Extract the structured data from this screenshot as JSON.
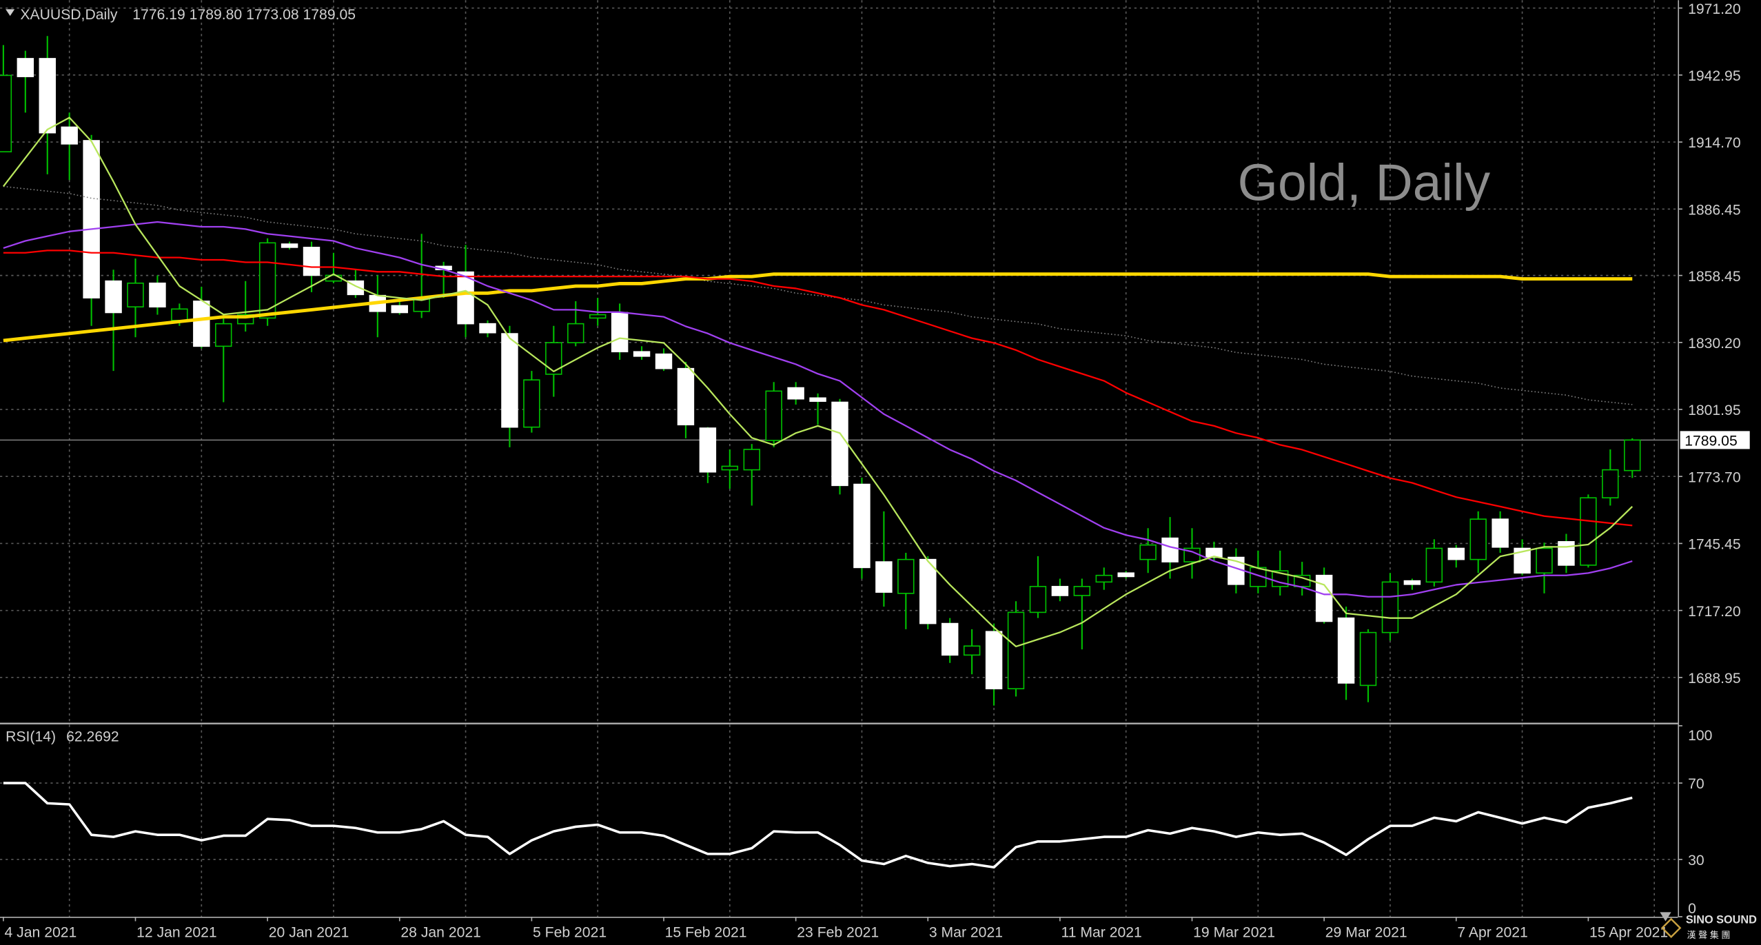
{
  "chart_data": {
    "type": "candlestick",
    "title": "XAUUSD,Daily",
    "subtitle": "1776.19 1789.80 1773.08 1789.05",
    "watermark": "Gold, Daily",
    "categories": [
      "4 Jan 2021",
      null,
      null,
      null,
      null,
      null,
      "12 Jan 2021",
      null,
      null,
      null,
      null,
      null,
      "20 Jan 2021",
      null,
      null,
      null,
      null,
      null,
      "28 Jan 2021",
      null,
      null,
      null,
      null,
      null,
      "5 Feb 2021",
      null,
      null,
      null,
      null,
      null,
      "15 Feb 2021",
      null,
      null,
      null,
      null,
      null,
      "23 Feb 2021",
      null,
      null,
      null,
      null,
      null,
      "3 Mar 2021",
      null,
      null,
      null,
      null,
      null,
      "11 Mar 2021",
      null,
      null,
      null,
      null,
      null,
      "19 Mar 2021",
      null,
      null,
      null,
      null,
      null,
      "29 Mar 2021",
      null,
      null,
      null,
      null,
      null,
      "7 Apr 2021",
      null,
      null,
      null,
      null,
      null,
      "15 Apr 2021",
      null,
      null
    ],
    "open": [
      1910.6,
      1949.9,
      1949.9,
      1921.0,
      1915.3,
      1856.1,
      1845.2,
      1855.2,
      1839.5,
      1847.6,
      1828.6,
      1838.1,
      1840.5,
      1871.7,
      1870.3,
      1856.1,
      1856.1,
      1850.0,
      1845.7,
      1843.3,
      1862.3,
      1859.9,
      1838.1,
      1833.9,
      1794.5,
      1816.8,
      1830.1,
      1840.5,
      1842.8,
      1826.3,
      1825.3,
      1819.2,
      1794.1,
      1776.5,
      1776.5,
      1788.9,
      1811.1,
      1806.8,
      1805.0,
      1770.4,
      1737.7,
      1724.4,
      1738.7,
      1711.7,
      1698.4,
      1708.3,
      1684.2,
      1716.4,
      1727.3,
      1723.5,
      1729.2,
      1733.0,
      1738.7,
      1747.7,
      1737.7,
      1743.4,
      1739.6,
      1727.3,
      1727.3,
      1727.3,
      1732.0,
      1714.0,
      1685.6,
      1707.9,
      1729.7,
      1729.2,
      1743.4,
      1738.7,
      1755.7,
      1743.4,
      1733.0,
      1746.2,
      1736.3,
      1764.7,
      1776.19
    ],
    "high": [
      1955.6,
      1953.2,
      1959.4,
      1927.1,
      1917.7,
      1860.9,
      1865.6,
      1858.5,
      1846.6,
      1853.7,
      1841.9,
      1856.1,
      1874.1,
      1872.7,
      1872.7,
      1868.0,
      1860.9,
      1858.5,
      1847.6,
      1876.0,
      1864.2,
      1871.3,
      1839.5,
      1837.2,
      1818.2,
      1837.2,
      1847.6,
      1849.0,
      1846.6,
      1828.6,
      1827.7,
      1822.0,
      1794.5,
      1785.1,
      1787.4,
      1813.5,
      1813.5,
      1808.7,
      1806.4,
      1773.2,
      1759.0,
      1741.5,
      1740.1,
      1714.0,
      1709.3,
      1711.7,
      1721.1,
      1740.1,
      1730.6,
      1730.6,
      1735.3,
      1733.9,
      1751.9,
      1756.6,
      1751.9,
      1746.2,
      1743.4,
      1742.4,
      1742.4,
      1737.7,
      1735.3,
      1718.8,
      1709.3,
      1733.0,
      1730.6,
      1747.2,
      1744.8,
      1759.0,
      1759.0,
      1747.2,
      1745.8,
      1749.5,
      1766.1,
      1785.1,
      1789.8
    ],
    "low": [
      1910.6,
      1927.1,
      1901.1,
      1898.7,
      1837.2,
      1818.2,
      1832.4,
      1841.9,
      1837.2,
      1827.7,
      1805.0,
      1834.8,
      1837.2,
      1869.4,
      1851.4,
      1855.2,
      1849.0,
      1832.4,
      1841.9,
      1840.5,
      1849.0,
      1832.4,
      1832.4,
      1786.0,
      1792.2,
      1807.3,
      1828.6,
      1837.2,
      1822.9,
      1822.9,
      1818.2,
      1789.8,
      1770.9,
      1768.5,
      1761.4,
      1786.0,
      1804.0,
      1795.5,
      1766.1,
      1730.6,
      1718.8,
      1709.3,
      1709.3,
      1695.1,
      1690.3,
      1677.1,
      1680.9,
      1714.0,
      1721.1,
      1700.8,
      1725.9,
      1730.6,
      1733.0,
      1730.6,
      1730.6,
      1737.7,
      1724.4,
      1724.4,
      1723.5,
      1723.5,
      1711.7,
      1679.5,
      1678.5,
      1704.5,
      1725.9,
      1727.3,
      1735.3,
      1733.0,
      1741.5,
      1732.0,
      1724.4,
      1733.0,
      1735.3,
      1761.4,
      1773.08
    ],
    "close": [
      1942.8,
      1942.3,
      1918.6,
      1913.9,
      1849.0,
      1842.8,
      1855.2,
      1845.2,
      1844.3,
      1828.6,
      1838.1,
      1841.9,
      1872.2,
      1870.3,
      1858.5,
      1858.5,
      1850.4,
      1843.3,
      1842.8,
      1849.0,
      1860.9,
      1838.1,
      1834.3,
      1794.5,
      1814.4,
      1830.1,
      1838.1,
      1841.9,
      1826.3,
      1824.4,
      1819.2,
      1795.5,
      1775.6,
      1778.0,
      1785.1,
      1809.7,
      1806.4,
      1805.4,
      1769.9,
      1735.3,
      1724.9,
      1738.7,
      1711.7,
      1698.4,
      1702.2,
      1684.2,
      1716.4,
      1727.3,
      1723.5,
      1727.3,
      1732.0,
      1731.5,
      1744.8,
      1737.7,
      1743.4,
      1739.6,
      1728.2,
      1735.3,
      1733.9,
      1732.0,
      1712.6,
      1686.6,
      1707.9,
      1729.2,
      1728.2,
      1743.4,
      1738.7,
      1755.7,
      1743.9,
      1733.0,
      1743.4,
      1736.3,
      1764.7,
      1776.5,
      1789.05
    ],
    "up_color": "#000000",
    "down_color": "#ffffff",
    "wick_color": "#00c000",
    "ylim": [
      1670.0,
      1974.5
    ],
    "yticks": [
      {
        "value": 1971.2,
        "label": "1971.20"
      },
      1942.95,
      {
        "value": 1914.7,
        "label": "1914.70"
      },
      1886.45,
      1858.45,
      {
        "value": 1830.2,
        "label": "1830.20"
      },
      1801.95,
      {
        "value": 1773.7,
        "label": "1773.70"
      },
      1745.45,
      {
        "value": 1717.2,
        "label": "1717.20"
      },
      1688.95
    ],
    "grid": true,
    "current_price": 1789.05,
    "overlays": [
      {
        "color": "#808080",
        "style": "dotted",
        "values": [
          1896,
          1895,
          1894,
          1893,
          1891,
          1890,
          1889,
          1888,
          1886,
          1885,
          1884,
          1883,
          1881,
          1880,
          1879,
          1878,
          1876,
          1875,
          1874,
          1873,
          1871,
          1870,
          1869,
          1868,
          1866,
          1865,
          1864,
          1863,
          1861,
          1860,
          1859,
          1858,
          1856,
          1855,
          1854,
          1853,
          1851,
          1850,
          1849,
          1848,
          1846,
          1845,
          1844,
          1843,
          1841,
          1840,
          1839,
          1838,
          1836,
          1835,
          1834,
          1833,
          1831,
          1830,
          1829,
          1828,
          1826,
          1825,
          1824,
          1823,
          1821,
          1820,
          1819,
          1818,
          1816,
          1815,
          1814,
          1813,
          1811,
          1810,
          1809,
          1808,
          1806,
          1805,
          1804
        ]
      },
      {
        "color": "#ffd700",
        "style": "thick",
        "values": [
          1831,
          1832,
          1833,
          1834,
          1835,
          1836,
          1837,
          1838,
          1839,
          1840,
          1841,
          1841,
          1842,
          1843,
          1844,
          1845,
          1846,
          1847,
          1848,
          1849,
          1850,
          1851,
          1851,
          1852,
          1852,
          1853,
          1854,
          1854,
          1855,
          1855,
          1856,
          1857,
          1857,
          1858,
          1858,
          1859,
          1859,
          1859,
          1859,
          1859,
          1859,
          1859,
          1859,
          1859,
          1859,
          1859,
          1859,
          1859,
          1859,
          1859,
          1859,
          1859,
          1859,
          1859,
          1859,
          1859,
          1859,
          1859,
          1859,
          1859,
          1859,
          1859,
          1859,
          1858,
          1858,
          1858,
          1858,
          1858,
          1858,
          1857,
          1857,
          1857,
          1857,
          1857,
          1857
        ]
      },
      {
        "color": "#ff0000",
        "style": "solid",
        "values": [
          1868,
          1868,
          1869,
          1869,
          1868,
          1868,
          1867,
          1866,
          1866,
          1865,
          1865,
          1864,
          1864,
          1863,
          1862,
          1862,
          1861,
          1860,
          1860,
          1859,
          1858,
          1858,
          1858,
          1858,
          1858,
          1858,
          1858,
          1858,
          1858,
          1858,
          1858,
          1858,
          1857,
          1857,
          1856,
          1854,
          1853,
          1851,
          1849,
          1846,
          1844,
          1841,
          1838,
          1835,
          1832,
          1830,
          1827,
          1823,
          1820,
          1817,
          1814,
          1809,
          1805,
          1801,
          1797,
          1795,
          1792,
          1790,
          1787,
          1785,
          1782,
          1779,
          1776,
          1773,
          1771,
          1768,
          1765,
          1763,
          1761,
          1759,
          1757,
          1756,
          1755,
          1754,
          1753
        ]
      },
      {
        "color": "#a040f0",
        "style": "solid",
        "values": [
          1870,
          1873,
          1875,
          1877,
          1878,
          1879,
          1880,
          1881,
          1880,
          1879,
          1879,
          1878,
          1876,
          1875,
          1874,
          1873,
          1870,
          1868,
          1866,
          1863,
          1861,
          1858,
          1854,
          1851,
          1848,
          1844,
          1844,
          1843,
          1843,
          1842,
          1841,
          1837,
          1834,
          1830,
          1827,
          1824,
          1821,
          1817,
          1814,
          1807,
          1800,
          1795,
          1790,
          1785,
          1781,
          1776,
          1772,
          1767,
          1762,
          1757,
          1752,
          1749,
          1747,
          1744,
          1742,
          1738,
          1735,
          1732,
          1729,
          1727,
          1724,
          1724,
          1723,
          1723,
          1724,
          1726,
          1728,
          1729,
          1730,
          1731,
          1732,
          1732,
          1733,
          1735,
          1738
        ]
      },
      {
        "color": "#b8e65c",
        "style": "solid",
        "values": [
          1896,
          1908,
          1920,
          1925,
          1915,
          1898,
          1880,
          1867,
          1854,
          1848,
          1842,
          1843,
          1844,
          1849,
          1854,
          1859,
          1854,
          1850,
          1849,
          1848,
          1850,
          1852,
          1846,
          1832,
          1825,
          1818,
          1823,
          1828,
          1832,
          1831,
          1830,
          1821,
          1811,
          1800,
          1790,
          1787,
          1792,
          1795,
          1792,
          1779,
          1766,
          1752,
          1738,
          1728,
          1719,
          1710,
          1702,
          1705,
          1708,
          1712,
          1718,
          1724,
          1729,
          1734,
          1737,
          1740,
          1738,
          1735,
          1733,
          1731,
          1728,
          1716,
          1715,
          1714,
          1714,
          1719,
          1724,
          1732,
          1740,
          1742,
          1744,
          1744,
          1745,
          1752,
          1761
        ]
      }
    ],
    "rsi": {
      "name": "RSI(14)",
      "color": "#ffffff",
      "ylim": [
        0,
        100
      ],
      "yticks": [
        0,
        30,
        70,
        100
      ],
      "values": [
        70.0,
        70.0,
        59.4,
        58.8,
        42.9,
        41.8,
        44.7,
        42.9,
        42.9,
        40.0,
        42.4,
        42.4,
        51.2,
        50.6,
        47.6,
        47.6,
        46.5,
        44.1,
        44.1,
        45.9,
        50.0,
        42.9,
        41.8,
        32.9,
        40.0,
        44.7,
        47.1,
        48.2,
        44.1,
        44.1,
        42.4,
        37.6,
        32.9,
        32.9,
        35.9,
        44.7,
        44.1,
        44.1,
        37.6,
        29.4,
        27.6,
        31.8,
        28.2,
        26.5,
        27.6,
        25.9,
        36.5,
        39.4,
        39.4,
        40.6,
        41.8,
        41.8,
        45.3,
        43.5,
        46.5,
        44.7,
        41.8,
        44.1,
        42.9,
        43.5,
        38.8,
        32.4,
        40.6,
        47.6,
        47.6,
        51.8,
        50.0,
        54.7,
        51.8,
        48.8,
        51.8,
        49.4,
        57.1,
        59.4,
        62.2692
      ]
    }
  },
  "branding": {
    "name": "SINO SOUND",
    "subtitle": "漢 聲 集 團"
  }
}
